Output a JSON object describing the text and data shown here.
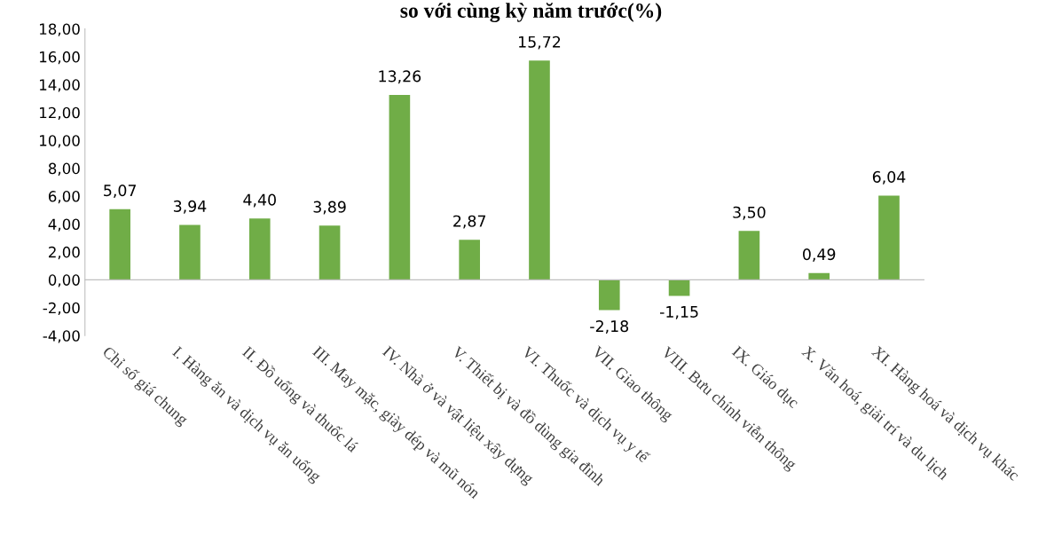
{
  "chart_data": {
    "type": "bar",
    "title": "so với cùng kỳ năm trước(%)",
    "categories": [
      "Chỉ số giá chung",
      "I. Hàng ăn và dịch vụ ăn uống",
      "II. Đồ uống và thuốc lá",
      "III. May mặc, giày dép và mũ nón",
      "IV. Nhà ở và vật liệu xây dựng",
      "V. Thiết bị và đồ dùng gia đình",
      "VI. Thuốc và dịch vụ y tế",
      "VII. Giao thông",
      "VIII. Bưu chính viễn thông",
      "IX. Giáo dục",
      "X. Văn hoá, giải trí và du lịch",
      "XI. Hàng hoá và dịch vụ khác"
    ],
    "values": [
      5.07,
      3.94,
      4.4,
      3.89,
      13.26,
      2.87,
      15.72,
      -2.18,
      -1.15,
      3.5,
      0.49,
      6.04
    ],
    "value_labels": [
      "5,07",
      "3,94",
      "4,40",
      "3,89",
      "13,26",
      "2,87",
      "15,72",
      "-2,18",
      "-1,15",
      "3,50",
      "0,49",
      "6,04"
    ],
    "color": "#70ad47",
    "ylim": [
      -4,
      18
    ],
    "yticks": [
      {
        "value": -4,
        "label": "-4,00"
      },
      {
        "value": -2,
        "label": "-2,00"
      },
      {
        "value": 0,
        "label": "0,00"
      },
      {
        "value": 2,
        "label": "2,00"
      },
      {
        "value": 4,
        "label": "4,00"
      },
      {
        "value": 6,
        "label": "6,00"
      },
      {
        "value": 8,
        "label": "8,00"
      },
      {
        "value": 10,
        "label": "10,00"
      },
      {
        "value": 12,
        "label": "12,00"
      },
      {
        "value": 14,
        "label": "14,00"
      },
      {
        "value": 16,
        "label": "16,00"
      },
      {
        "value": 18,
        "label": "18,00"
      }
    ],
    "legend": false
  }
}
